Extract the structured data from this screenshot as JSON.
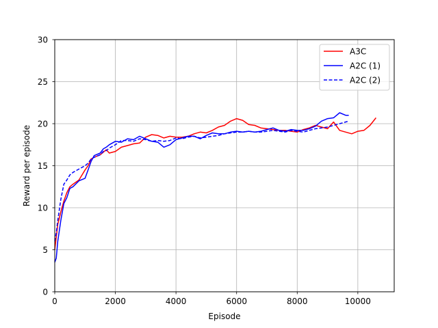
{
  "chart_data": {
    "type": "line",
    "title": "",
    "xlabel": "Episode",
    "ylabel": "Reward per episode",
    "xlim": [
      0,
      11200
    ],
    "ylim": [
      0,
      30
    ],
    "xticks": [
      0,
      2000,
      4000,
      6000,
      8000,
      10000
    ],
    "yticks": [
      0,
      5,
      10,
      15,
      20,
      25,
      30
    ],
    "grid": true,
    "legend_position": "top-right",
    "series": [
      {
        "name": "A3C",
        "color": "#ff0000",
        "style": "solid",
        "x": [
          0,
          50,
          100,
          200,
          300,
          400,
          500,
          600,
          800,
          1000,
          1100,
          1200,
          1300,
          1500,
          1600,
          1700,
          1800,
          2000,
          2200,
          2400,
          2600,
          2800,
          3000,
          3200,
          3400,
          3600,
          3800,
          4000,
          4200,
          4400,
          4600,
          4800,
          5000,
          5200,
          5400,
          5600,
          5800,
          6000,
          6200,
          6400,
          6600,
          6800,
          7000,
          7200,
          7400,
          7600,
          7800,
          8000,
          8200,
          8400,
          8600,
          8800,
          9000,
          9200,
          9400,
          9600,
          9800,
          10000,
          10200,
          10400,
          10600
        ],
        "y": [
          5.0,
          6.5,
          8.0,
          9.5,
          10.8,
          11.8,
          12.5,
          12.8,
          13.3,
          14.5,
          15.0,
          15.8,
          16.0,
          16.3,
          16.6,
          16.9,
          16.5,
          16.7,
          17.2,
          17.4,
          17.6,
          17.7,
          18.4,
          18.7,
          18.6,
          18.3,
          18.5,
          18.4,
          18.4,
          18.5,
          18.8,
          19.0,
          18.9,
          19.2,
          19.6,
          19.8,
          20.3,
          20.6,
          20.4,
          19.9,
          19.8,
          19.5,
          19.4,
          19.3,
          19.2,
          19.2,
          19.1,
          19.0,
          19.3,
          19.5,
          19.8,
          19.6,
          19.4,
          20.2,
          19.2,
          19.0,
          18.8,
          19.1,
          19.2,
          19.8,
          20.7
        ]
      },
      {
        "name": "A2C (1)",
        "color": "#0000ff",
        "style": "solid",
        "x": [
          0,
          50,
          100,
          200,
          300,
          400,
          500,
          600,
          800,
          1000,
          1100,
          1200,
          1300,
          1500,
          1600,
          1700,
          1800,
          2000,
          2200,
          2400,
          2600,
          2800,
          3000,
          3200,
          3400,
          3600,
          3800,
          4000,
          4200,
          4400,
          4600,
          4800,
          5000,
          5200,
          5400,
          5600,
          5800,
          6000,
          6200,
          6400,
          6600,
          6800,
          7000,
          7200,
          7400,
          7600,
          7800,
          8000,
          8200,
          8400,
          8600,
          8800,
          9000,
          9200,
          9400,
          9600,
          9700
        ],
        "y": [
          3.5,
          4.0,
          6.0,
          8.5,
          10.5,
          11.2,
          12.3,
          12.5,
          13.2,
          13.5,
          14.5,
          15.5,
          16.2,
          16.5,
          17.0,
          17.2,
          17.5,
          17.9,
          17.8,
          18.2,
          18.1,
          18.5,
          18.2,
          17.9,
          17.8,
          17.2,
          17.5,
          18.1,
          18.3,
          18.5,
          18.5,
          18.2,
          18.6,
          18.9,
          18.8,
          18.8,
          19.0,
          19.1,
          19.0,
          19.1,
          19.0,
          19.1,
          19.3,
          19.5,
          19.2,
          19.1,
          19.3,
          19.2,
          19.2,
          19.4,
          19.7,
          20.3,
          20.6,
          20.7,
          21.3,
          21.0,
          21.0
        ]
      },
      {
        "name": "A2C (2)",
        "color": "#0000ff",
        "style": "dashed",
        "x": [
          0,
          50,
          100,
          200,
          300,
          400,
          500,
          600,
          800,
          1000,
          1100,
          1200,
          1300,
          1500,
          1600,
          1700,
          1800,
          2000,
          2200,
          2400,
          2600,
          2800,
          3000,
          3200,
          3400,
          3600,
          3800,
          4000,
          4200,
          4400,
          4600,
          4800,
          5000,
          5200,
          5400,
          5600,
          5800,
          6000,
          6200,
          6400,
          6600,
          6800,
          7000,
          7200,
          7400,
          7600,
          7800,
          8000,
          8200,
          8400,
          8600,
          8800,
          9000,
          9200,
          9400,
          9600,
          9700
        ],
        "y": [
          6.0,
          7.0,
          8.5,
          11.0,
          12.8,
          13.3,
          13.9,
          14.2,
          14.6,
          15.0,
          15.3,
          15.8,
          16.0,
          16.3,
          16.7,
          16.8,
          17.1,
          17.5,
          18.0,
          18.0,
          17.9,
          18.2,
          18.1,
          17.9,
          18.0,
          17.9,
          18.0,
          18.3,
          18.2,
          18.4,
          18.5,
          18.3,
          18.4,
          18.5,
          18.6,
          18.8,
          18.9,
          19.0,
          19.0,
          19.1,
          19.0,
          19.0,
          19.1,
          19.2,
          19.1,
          19.0,
          19.2,
          19.1,
          19.0,
          19.2,
          19.4,
          19.5,
          19.6,
          19.8,
          20.0,
          20.2,
          20.3
        ]
      }
    ]
  }
}
